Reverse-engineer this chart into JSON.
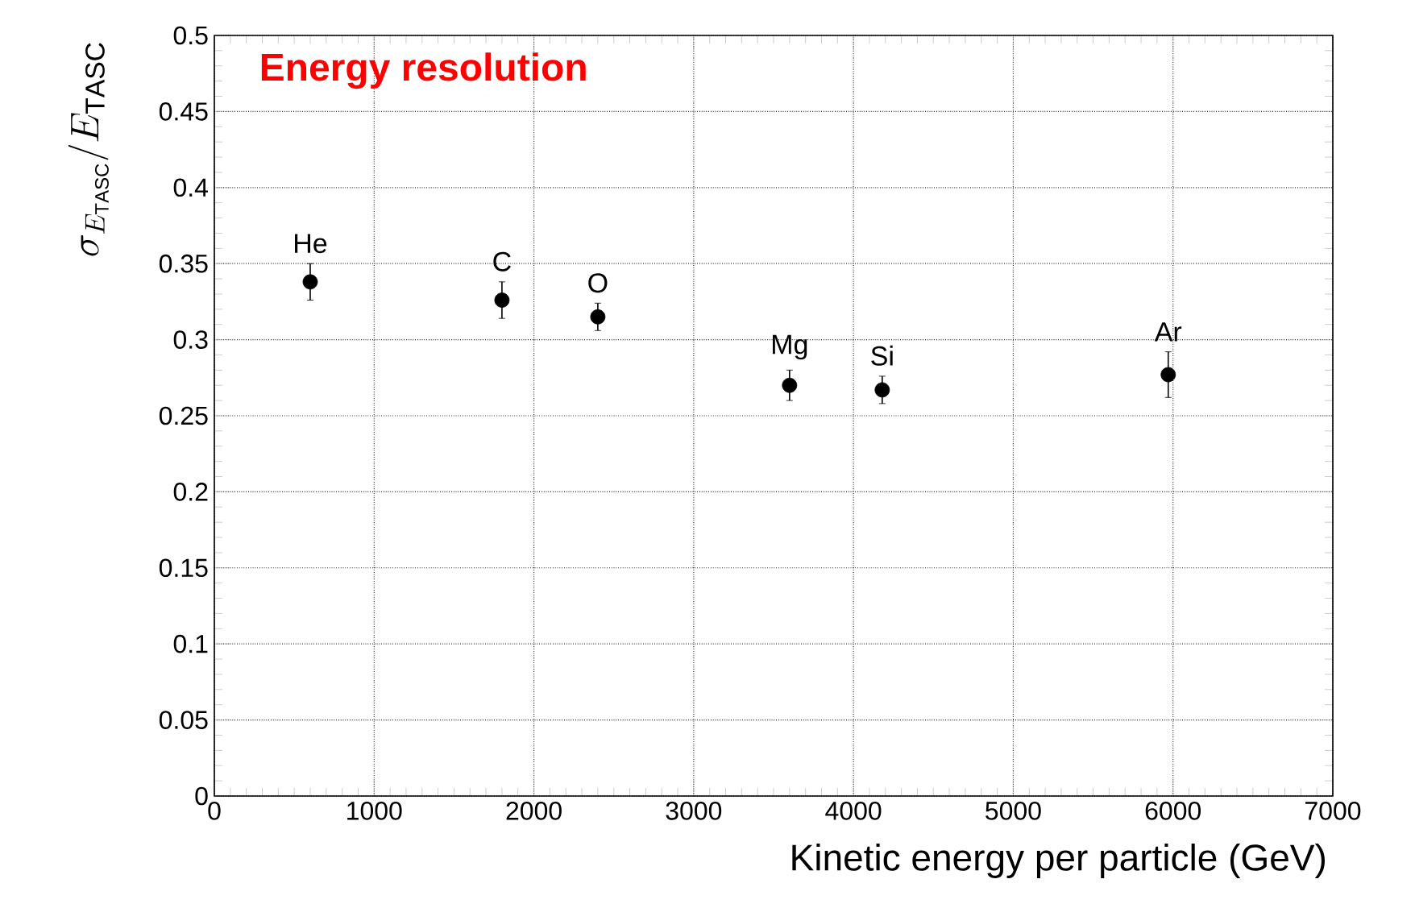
{
  "chart_data": {
    "type": "scatter",
    "title": "Energy resolution",
    "xlabel": "Kinetic energy per particle (GeV)",
    "ylabel": "\\sigma_{E_{\\mathrm{TASC}}}/E_{\\mathrm{TASC}}",
    "series": [
      {
        "color": "#000000",
        "x": [
          600,
          1800,
          2400,
          3600,
          4180,
          5970
        ],
        "values": [
          0.338,
          0.326,
          0.315,
          0.27,
          0.267,
          0.277
        ],
        "errors": [
          0.012,
          0.012,
          0.009,
          0.01,
          0.009,
          0.015
        ]
      }
    ],
    "annotations": [
      {
        "text": "He",
        "x": 600,
        "y": 0.338
      },
      {
        "text": "C",
        "x": 1800,
        "y": 0.326
      },
      {
        "text": "O",
        "x": 2400,
        "y": 0.315
      },
      {
        "text": "Mg",
        "x": 3600,
        "y": 0.27
      },
      {
        "text": "Si",
        "x": 4180,
        "y": 0.267
      },
      {
        "text": "Ar",
        "x": 5970,
        "y": 0.277
      }
    ],
    "xlim": [
      0,
      7000
    ],
    "xticks": [
      0,
      1000,
      2000,
      3000,
      4000,
      5000,
      6000,
      7000
    ],
    "ylim": [
      0,
      0.5
    ],
    "yticks": [
      0,
      0.05,
      0.1,
      0.15,
      0.2,
      0.25,
      0.3,
      0.35,
      0.4,
      0.45,
      0.5
    ],
    "grid": true,
    "marker": "circle"
  }
}
